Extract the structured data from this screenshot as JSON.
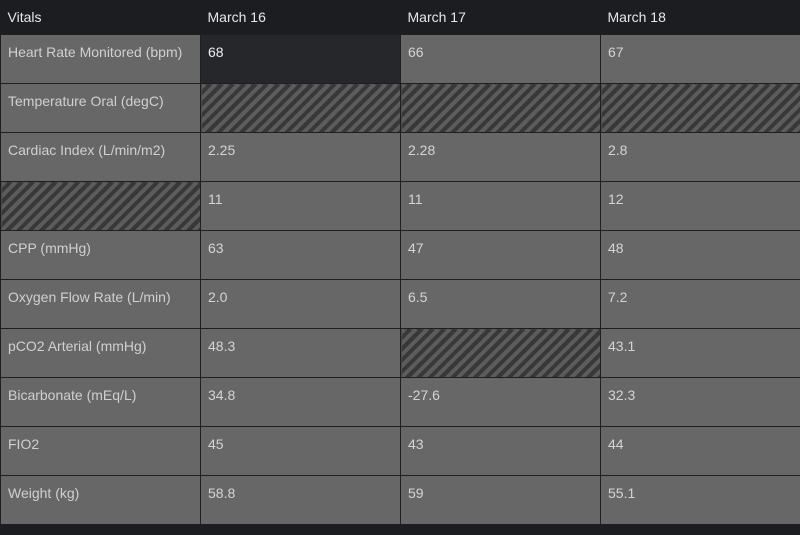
{
  "header": {
    "vitals_label": "Vitals",
    "dates": [
      "March 16",
      "March 17",
      "March 18"
    ]
  },
  "rows": [
    {
      "label": "Heart Rate Monitored (bpm)",
      "values": [
        "68",
        "66",
        "67"
      ]
    },
    {
      "label": "Temperature Oral (degC)",
      "values": [
        null,
        null,
        null
      ]
    },
    {
      "label": "Cardiac Index (L/min/m2)",
      "values": [
        "2.25",
        "2.28",
        "2.8"
      ]
    },
    {
      "label": null,
      "values": [
        "11",
        "11",
        "12"
      ]
    },
    {
      "label": "CPP (mmHg)",
      "values": [
        "63",
        "47",
        "48"
      ]
    },
    {
      "label": "Oxygen Flow Rate (L/min)",
      "values": [
        "2.0",
        "6.5",
        "7.2"
      ]
    },
    {
      "label": "pCO2 Arterial (mmHg)",
      "values": [
        "48.3",
        null,
        "43.1"
      ]
    },
    {
      "label": "Bicarbonate (mEq/L)",
      "values": [
        "34.8",
        "-27.6",
        "32.3"
      ]
    },
    {
      "label": "FIO2",
      "values": [
        "45",
        "43",
        "44"
      ]
    },
    {
      "label": "Weight (kg)",
      "values": [
        "58.8",
        "59",
        "55.1"
      ]
    }
  ],
  "colors": {
    "background": "#1b1d20",
    "cell": "#676767",
    "selected_cell": "#25272a",
    "missing_hatch": "#383838"
  }
}
